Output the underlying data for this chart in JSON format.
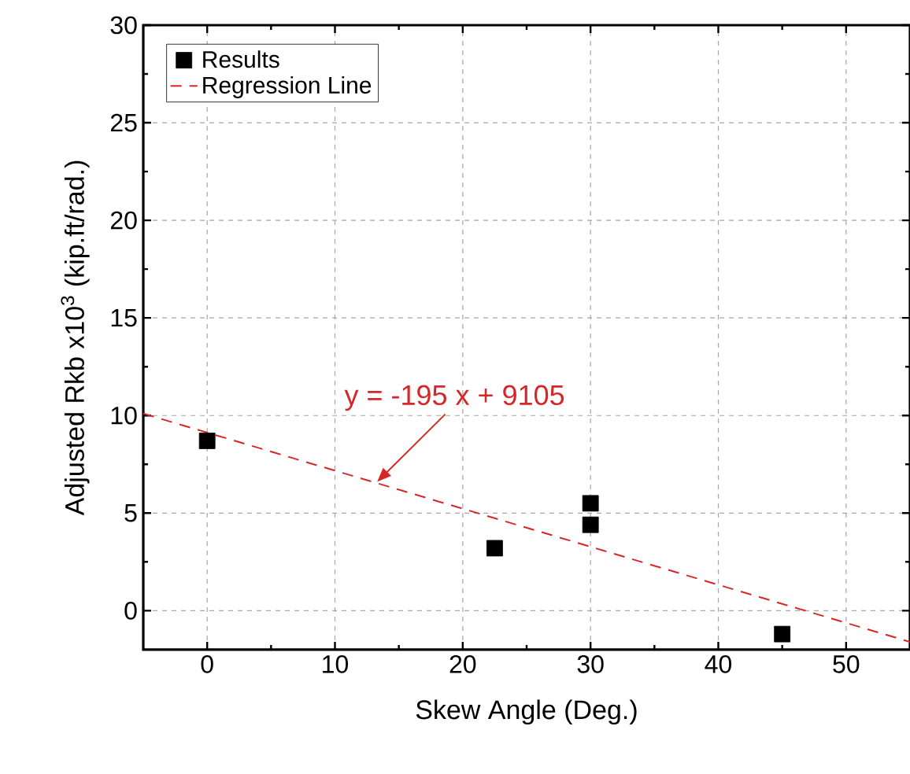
{
  "chart_data": {
    "type": "scatter",
    "xlabel": "Skew Angle (Deg.)",
    "ylabel": "Adjusted Rkb x10$^{3}$ (kip.ft/rad.)",
    "xlim": [
      -5,
      55
    ],
    "ylim": [
      -2,
      30
    ],
    "xticks": [
      0,
      10,
      20,
      30,
      40,
      50
    ],
    "yticks": [
      0,
      5,
      10,
      15,
      20,
      25,
      30
    ],
    "grid": true,
    "legend": "top left",
    "marker": "square",
    "series": [
      {
        "name": "Results",
        "color": "#000000",
        "x": [
          0,
          22.5,
          30,
          30,
          45
        ],
        "values": [
          8.7,
          3.2,
          5.5,
          4.4,
          -1.2
        ]
      },
      {
        "name": "Regression Line",
        "type": "line",
        "color": "#d62728",
        "line_style": "dashed",
        "marker": "none",
        "x": [
          -5,
          55
        ],
        "values": [
          10.1,
          -1.6
        ]
      }
    ],
    "annotations": [
      {
        "text": "y = -195 x + 9105",
        "x": 13.3,
        "y": 6.6
      }
    ]
  }
}
